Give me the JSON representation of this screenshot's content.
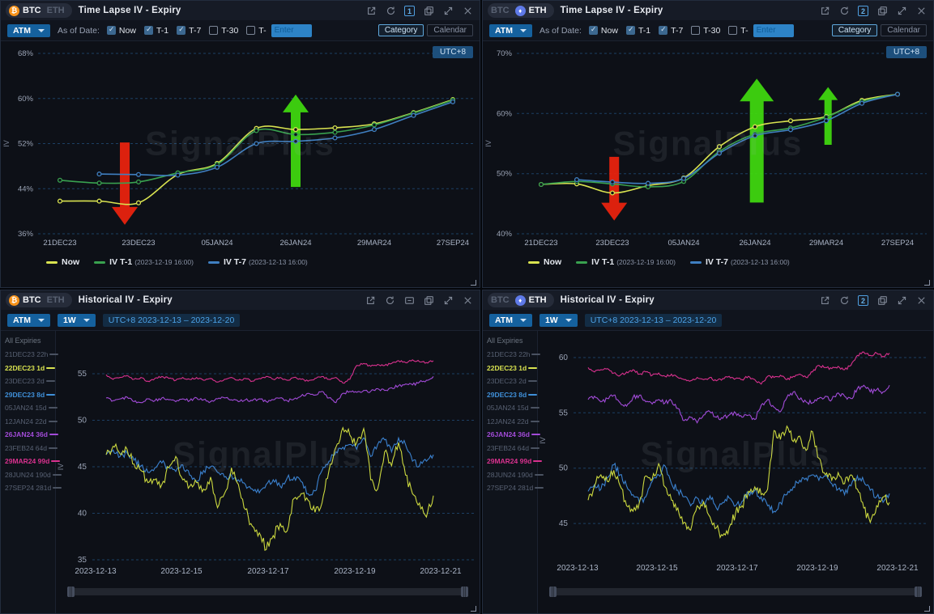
{
  "app": {
    "watermark": "SignalPlus",
    "utc_badge": "UTC+8"
  },
  "panels": [
    {
      "tabs": {
        "btc": "BTC",
        "eth": "ETH",
        "active": "BTC"
      },
      "title": "Time Lapse IV - Expiry",
      "header_icons": [
        "export",
        "refresh",
        "badge:1",
        "duplicate",
        "fullscreen",
        "close"
      ],
      "toolbar": {
        "strike_mode": "ATM",
        "as_of_label": "As of Date:",
        "checkboxes": [
          {
            "label": "Now",
            "checked": true
          },
          {
            "label": "T-1",
            "checked": true
          },
          {
            "label": "T-7",
            "checked": true
          },
          {
            "label": "T-30",
            "checked": false
          },
          {
            "label": "T-",
            "checked": false
          }
        ],
        "enter_placeholder": "Enter",
        "view_category": "Category",
        "view_calendar": "Calendar"
      },
      "legend": [
        {
          "name": "Now",
          "time": "",
          "color": "#d9e350"
        },
        {
          "name": "IV T-1",
          "time": "(2023-12-19 16:00)",
          "color": "#39a14f"
        },
        {
          "name": "IV T-7",
          "time": "(2023-12-13 16:00)",
          "color": "#3f7fc1"
        }
      ]
    },
    {
      "tabs": {
        "btc": "BTC",
        "eth": "ETH",
        "active": "ETH"
      },
      "title": "Time Lapse IV - Expiry",
      "header_icons": [
        "export",
        "refresh",
        "badge:2",
        "duplicate",
        "fullscreen",
        "close"
      ],
      "toolbar": {
        "strike_mode": "ATM",
        "as_of_label": "As of Date:",
        "checkboxes": [
          {
            "label": "Now",
            "checked": true
          },
          {
            "label": "T-1",
            "checked": true
          },
          {
            "label": "T-7",
            "checked": true
          },
          {
            "label": "T-30",
            "checked": false
          },
          {
            "label": "T-",
            "checked": false
          }
        ],
        "enter_placeholder": "Enter",
        "view_category": "Category",
        "view_calendar": "Calendar"
      },
      "legend": [
        {
          "name": "Now",
          "time": "",
          "color": "#d9e350"
        },
        {
          "name": "IV T-1",
          "time": "(2023-12-19 16:00)",
          "color": "#39a14f"
        },
        {
          "name": "IV T-7",
          "time": "(2023-12-13 16:00)",
          "color": "#3f7fc1"
        }
      ]
    },
    {
      "tabs": {
        "btc": "BTC",
        "eth": "ETH",
        "active": "BTC"
      },
      "title": "Historical IV - Expiry",
      "header_icons": [
        "export",
        "refresh",
        "folder",
        "duplicate",
        "fullscreen",
        "close"
      ],
      "toolbar": {
        "strike_mode": "ATM",
        "period": "1W",
        "range": "UTC+8 2023-12-13 – 2023-12-20"
      },
      "expiries_header": "All Expiries",
      "expiries": [
        {
          "label": "21DEC23 22h",
          "color": ""
        },
        {
          "label": "22DEC23 1d",
          "color": "#d9e350"
        },
        {
          "label": "23DEC23 2d",
          "color": ""
        },
        {
          "label": "29DEC23 8d",
          "color": "#3f8fd8"
        },
        {
          "label": "05JAN24 15d",
          "color": ""
        },
        {
          "label": "12JAN24 22d",
          "color": ""
        },
        {
          "label": "26JAN24 36d",
          "color": "#a24bd8"
        },
        {
          "label": "23FEB24 64d",
          "color": ""
        },
        {
          "label": "29MAR24 99d",
          "color": "#d9318e"
        },
        {
          "label": "28JUN24 190d",
          "color": ""
        },
        {
          "label": "27SEP24 281d",
          "color": ""
        }
      ]
    },
    {
      "tabs": {
        "btc": "BTC",
        "eth": "ETH",
        "active": "ETH"
      },
      "title": "Historical IV - Expiry",
      "header_icons": [
        "export",
        "refresh",
        "badge:2",
        "duplicate",
        "fullscreen",
        "close"
      ],
      "toolbar": {
        "strike_mode": "ATM",
        "period": "1W",
        "range": "UTC+8 2023-12-13 – 2023-12-20"
      },
      "expiries_header": "All Expiries",
      "expiries": [
        {
          "label": "21DEC23 22h",
          "color": ""
        },
        {
          "label": "22DEC23 1d",
          "color": "#d9e350"
        },
        {
          "label": "23DEC23 2d",
          "color": ""
        },
        {
          "label": "29DEC23 8d",
          "color": "#3f8fd8"
        },
        {
          "label": "05JAN24 15d",
          "color": ""
        },
        {
          "label": "12JAN24 22d",
          "color": ""
        },
        {
          "label": "26JAN24 36d",
          "color": "#a24bd8"
        },
        {
          "label": "23FEB24 64d",
          "color": ""
        },
        {
          "label": "29MAR24 99d",
          "color": "#d9318e"
        },
        {
          "label": "28JUN24 190d",
          "color": ""
        },
        {
          "label": "27SEP24 281d",
          "color": ""
        }
      ]
    }
  ],
  "chart_data": [
    {
      "type": "line",
      "title": "BTC Time Lapse IV - Expiry",
      "ylabel": "IV",
      "ylim": [
        36,
        68
      ],
      "y_ticks": [
        68,
        60,
        52,
        44,
        36
      ],
      "y_tick_suffix": "%",
      "grid": "dashed-horizontal",
      "legend_position": "bottom-left",
      "categories": [
        "21DEC23",
        "22DEC23",
        "23DEC23",
        "29DEC23",
        "05JAN24",
        "12JAN24",
        "26JAN24",
        "23FEB24",
        "29MAR24",
        "28JUN24",
        "27SEP24"
      ],
      "x_tick_labels": [
        "21DEC23",
        "23DEC23",
        "05JAN24",
        "26JAN24",
        "29MAR24",
        "27SEP24"
      ],
      "series": [
        {
          "name": "Now",
          "color": "#d9e350",
          "values": [
            41.8,
            41.8,
            41.5,
            46.5,
            48.5,
            54.7,
            54.5,
            54.8,
            55.5,
            57.5,
            59.8
          ]
        },
        {
          "name": "IV T-1(2023-12-19 16:00)",
          "color": "#39a14f",
          "values": [
            45.5,
            45.0,
            45.2,
            46.8,
            48.3,
            54.3,
            53.6,
            54.0,
            55.3,
            57.4,
            59.7
          ]
        },
        {
          "name": "IV T-7(2023-12-13 16:00)",
          "color": "#3f7fc1",
          "values": [
            null,
            46.6,
            46.5,
            46.4,
            47.8,
            52.0,
            52.4,
            53.0,
            54.5,
            57.0,
            59.4
          ]
        }
      ],
      "annotations": [
        {
          "type": "arrow-down",
          "color": "#e8230e",
          "x": 1.65,
          "y_from": 52.2,
          "y_to": 37.6,
          "size": "md"
        },
        {
          "type": "arrow-up",
          "color": "#3fd60f",
          "x": 6.0,
          "y_from": 44.3,
          "y_to": 60.7,
          "size": "md"
        }
      ]
    },
    {
      "type": "line",
      "title": "ETH Time Lapse IV - Expiry",
      "ylabel": "IV",
      "ylim": [
        40,
        70
      ],
      "y_ticks": [
        70,
        60,
        50,
        40
      ],
      "y_tick_suffix": "%",
      "grid": "dashed-horizontal",
      "legend_position": "bottom-left",
      "categories": [
        "21DEC23",
        "22DEC23",
        "23DEC23",
        "29DEC23",
        "05JAN24",
        "12JAN24",
        "26JAN24",
        "23FEB24",
        "29MAR24",
        "28JUN24",
        "27SEP24"
      ],
      "x_tick_labels": [
        "21DEC23",
        "23DEC23",
        "05JAN24",
        "26JAN24",
        "29MAR24",
        "27SEP24"
      ],
      "series": [
        {
          "name": "Now",
          "color": "#d9e350",
          "values": [
            48.2,
            48.3,
            46.8,
            48.0,
            49.3,
            54.5,
            57.8,
            58.8,
            59.5,
            62.2,
            63.2
          ]
        },
        {
          "name": "IV T-1(2023-12-19 16:00)",
          "color": "#39a14f",
          "values": [
            48.2,
            48.7,
            48.3,
            47.8,
            48.7,
            53.7,
            56.6,
            57.6,
            59.4,
            62.0,
            63.2
          ]
        },
        {
          "name": "IV T-7(2023-12-13 16:00)",
          "color": "#3f7fc1",
          "values": [
            null,
            49.0,
            48.6,
            48.4,
            49.2,
            53.4,
            56.3,
            57.3,
            58.8,
            61.7,
            63.2
          ]
        }
      ],
      "annotations": [
        {
          "type": "arrow-down",
          "color": "#e8230e",
          "x": 2.05,
          "y_from": 52.8,
          "y_to": 42.2,
          "size": "md"
        },
        {
          "type": "arrow-up",
          "color": "#3fd60f",
          "x": 6.05,
          "y_from": 45.2,
          "y_to": 65.8,
          "size": "lg"
        },
        {
          "type": "arrow-up",
          "color": "#3fd60f",
          "x": 8.05,
          "y_from": 54.8,
          "y_to": 64.4,
          "size": "sm"
        }
      ]
    },
    {
      "type": "line",
      "title": "BTC Historical IV - Expiry",
      "ylabel": "IV",
      "y_ticks": [
        55,
        50,
        45,
        40,
        35
      ],
      "grid": "dashed-horizontal",
      "x_range": [
        "2023-12-13",
        "2023-12-21"
      ],
      "x_tick_labels": [
        "2023-12-13",
        "2023-12-15",
        "2023-12-17",
        "2023-12-19",
        "2023-12-21"
      ],
      "series": [
        {
          "name": "29MAR24 99d",
          "color": "#d9318e",
          "values": [
            54.9,
            54.4,
            54.6,
            54.8,
            54.4,
            54.6,
            54.2,
            54.5,
            54.7,
            54.5,
            54.3,
            54.6,
            54.4,
            54.6,
            54.3,
            54.5,
            54.1,
            54.4,
            54.6,
            54.3,
            54.5,
            54.2,
            54.5,
            54.7,
            54.4,
            54.6,
            54.3,
            54.6,
            54.4,
            54.2,
            54.5,
            54.7,
            54.4,
            54.6,
            54.0,
            54.4,
            55.9,
            56.1,
            55.8,
            56.0,
            55.9,
            56.1,
            56.4,
            56.2,
            56.5,
            56.3,
            56.2,
            56.4
          ]
        },
        {
          "name": "26JAN24 36d",
          "color": "#a24bd8",
          "values": [
            52.4,
            52.1,
            52.3,
            52.5,
            52.0,
            51.9,
            52.3,
            52.1,
            52.4,
            52.2,
            52.0,
            52.3,
            52.1,
            52.4,
            52.2,
            52.0,
            52.3,
            52.4,
            52.2,
            52.0,
            52.2,
            52.1,
            52.3,
            52.0,
            52.2,
            52.4,
            52.1,
            52.3,
            52.6,
            52.9,
            52.7,
            53.1,
            52.4,
            51.9,
            52.9,
            53.1,
            53.0,
            53.2,
            53.1,
            53.4,
            53.2,
            53.5,
            53.7,
            53.9,
            53.8,
            54.1,
            54.3,
            54.7
          ]
        },
        {
          "name": "29DEC23 8d",
          "color": "#3b82d0",
          "values": [
            46.3,
            46.8,
            46.1,
            46.5,
            45.7,
            45.1,
            44.4,
            44.9,
            45.4,
            44.9,
            44.5,
            45.2,
            44.1,
            43.4,
            44.6,
            45.0,
            44.4,
            43.9,
            44.1,
            43.6,
            43.1,
            42.6,
            42.2,
            43.1,
            43.6,
            42.9,
            43.8,
            43.9,
            43.4,
            42.1,
            42.4,
            44.6,
            45.6,
            46.6,
            47.1,
            47.4,
            46.9,
            48.1,
            46.1,
            47.4,
            47.9,
            46.6,
            48.1,
            47.4,
            45.6,
            45.1,
            45.6,
            46.3
          ]
        },
        {
          "name": "22DEC23 1d",
          "color": "#ccd93f",
          "values": [
            46.3,
            47.2,
            46.4,
            46.9,
            45.3,
            44.6,
            43.3,
            43.6,
            43.1,
            44.9,
            46.1,
            43.6,
            42.9,
            43.3,
            42.6,
            43.9,
            40.6,
            42.1,
            44.9,
            43.1,
            40.4,
            38.6,
            37.9,
            36.1,
            37.6,
            38.9,
            38.1,
            41.6,
            42.1,
            41.4,
            40.1,
            41.1,
            44.6,
            47.1,
            49.2,
            48.4,
            47.6,
            49.1,
            43.6,
            42.6,
            46.6,
            45.1,
            47.6,
            44.1,
            42.1,
            41.1,
            39.6,
            41.9
          ]
        }
      ]
    },
    {
      "type": "line",
      "title": "ETH Historical IV - Expiry",
      "ylabel": "IV",
      "y_ticks": [
        60,
        55,
        50,
        45
      ],
      "grid": "dashed-horizontal",
      "x_range": [
        "2023-12-13",
        "2023-12-21"
      ],
      "x_tick_labels": [
        "2023-12-13",
        "2023-12-15",
        "2023-12-17",
        "2023-12-19",
        "2023-12-21"
      ],
      "series": [
        {
          "name": "29MAR24 99d",
          "color": "#d9318e",
          "values": [
            59.1,
            58.7,
            58.9,
            59.0,
            58.6,
            58.4,
            58.7,
            58.9,
            58.5,
            58.7,
            58.4,
            58.6,
            58.3,
            58.5,
            58.2,
            58.0,
            57.9,
            58.2,
            58.0,
            58.2,
            57.9,
            58.1,
            58.3,
            58.1,
            58.0,
            58.3,
            58.0,
            57.6,
            58.3,
            58.2,
            58.4,
            58.0,
            58.3,
            58.5,
            58.2,
            58.7,
            59.3,
            59.1,
            59.0,
            59.2,
            58.9,
            59.3,
            60.2,
            60.5,
            60.2,
            60.4,
            60.1,
            60.4
          ]
        },
        {
          "name": "26JAN24 36d",
          "color": "#a24bd8",
          "values": [
            56.2,
            56.5,
            56.0,
            56.3,
            56.6,
            55.9,
            55.6,
            56.4,
            56.6,
            56.0,
            55.8,
            56.2,
            55.9,
            56.1,
            55.4,
            54.3,
            54.6,
            54.1,
            54.8,
            55.1,
            54.6,
            54.5,
            54.8,
            55.0,
            54.6,
            54.8,
            54.4,
            55.7,
            56.2,
            55.5,
            55.1,
            56.4,
            56.9,
            56.2,
            56.0,
            55.9,
            56.3,
            56.5,
            56.2,
            56.8,
            56.5,
            56.3,
            57.2,
            57.5,
            56.9,
            57.1,
            56.9,
            57.5
          ]
        },
        {
          "name": "29DEC23 8d",
          "color": "#3b82d0",
          "values": [
            47.9,
            48.5,
            48.1,
            49.1,
            50.3,
            49.4,
            48.4,
            47.6,
            46.9,
            47.4,
            48.8,
            49.4,
            50.2,
            48.6,
            48.0,
            47.4,
            46.6,
            47.3,
            46.9,
            47.5,
            46.4,
            46.9,
            47.3,
            46.6,
            47.0,
            47.8,
            48.0,
            47.4,
            46.6,
            46.1,
            46.9,
            47.6,
            48.3,
            48.9,
            49.1,
            49.4,
            48.9,
            49.3,
            48.6,
            48.1,
            47.6,
            48.4,
            49.3,
            48.8,
            48.0,
            47.4,
            46.9,
            47.7
          ]
        },
        {
          "name": "22DEC23 1d",
          "color": "#ccd93f",
          "values": [
            47.1,
            48.4,
            49.4,
            48.8,
            49.8,
            48.4,
            46.6,
            46.1,
            46.9,
            49.3,
            49.0,
            50.4,
            48.3,
            47.1,
            46.4,
            45.1,
            44.4,
            46.6,
            47.0,
            45.6,
            44.6,
            43.9,
            44.6,
            45.9,
            46.6,
            47.9,
            48.3,
            47.6,
            48.1,
            53.4,
            52.6,
            53.8,
            52.4,
            52.9,
            51.6,
            53.3,
            50.9,
            49.4,
            48.9,
            49.6,
            48.6,
            49.4,
            48.1,
            46.4,
            45.1,
            46.6,
            47.4,
            46.9
          ]
        }
      ]
    }
  ]
}
